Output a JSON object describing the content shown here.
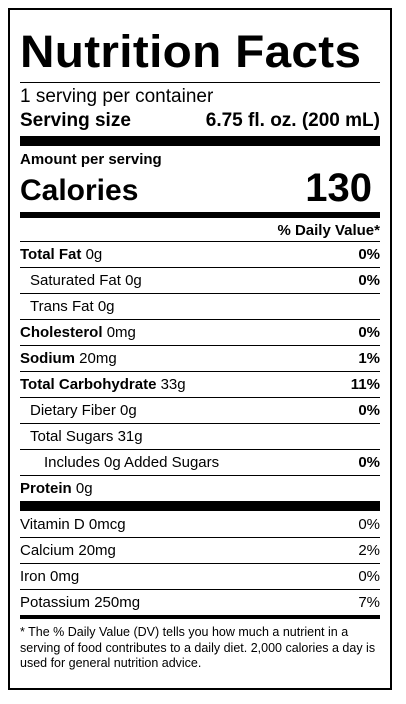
{
  "title": "Nutrition Facts",
  "servings_per_container": "1 serving per container",
  "serving_size_label": "Serving size",
  "serving_size_value": "6.75 fl. oz. (200 mL)",
  "amount_per_serving": "Amount per serving",
  "calories_label": "Calories",
  "calories_value": "130",
  "daily_value_header": "% Daily Value*",
  "nutrients": [
    {
      "name": "Total Fat",
      "amount": "0g",
      "dv": "0%"
    },
    {
      "name": "Saturated Fat",
      "amount": "0g",
      "dv": "0%"
    },
    {
      "name": "Trans Fat",
      "amount": "0g",
      "dv": ""
    },
    {
      "name": "Cholesterol",
      "amount": "0mg",
      "dv": "0%"
    },
    {
      "name": "Sodium",
      "amount": "20mg",
      "dv": "1%"
    },
    {
      "name": "Total Carbohydrate",
      "amount": "33g",
      "dv": "11%"
    },
    {
      "name": "Dietary Fiber",
      "amount": "0g",
      "dv": "0%"
    },
    {
      "name": "Total Sugars",
      "amount": "31g",
      "dv": ""
    },
    {
      "name": "Includes 0g Added Sugars",
      "amount": "",
      "dv": "0%"
    },
    {
      "name": "Protein",
      "amount": "0g",
      "dv": ""
    }
  ],
  "vitamins": [
    {
      "name": "Vitamin D",
      "amount": "0mcg",
      "dv": "0%"
    },
    {
      "name": "Calcium",
      "amount": "20mg",
      "dv": "2%"
    },
    {
      "name": "Iron",
      "amount": "0mg",
      "dv": "0%"
    },
    {
      "name": "Potassium",
      "amount": "250mg",
      "dv": "7%"
    }
  ],
  "footnote": "* The % Daily Value (DV) tells you how much a nutrient in a serving of food contributes to a daily diet. 2,000 calories a day is used for general nutrition advice."
}
